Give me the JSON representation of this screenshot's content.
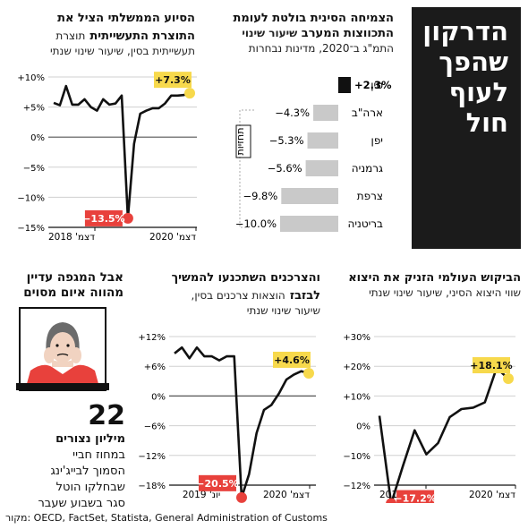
{
  "headline": [
    "הדרקון",
    "שהפך",
    "לעוף חול"
  ],
  "panels": {
    "gdp": {
      "title": [
        "הצמיחה הסינית בולטת לעומת",
        "התכווצות המערב"
      ],
      "subtitle": [
        "שיעור שינוי",
        "התמ\"ג ב־2020, מדינות נבחרות"
      ],
      "tag": "תחזיות"
    },
    "industry": {
      "title": [
        "הסיוע הממשלתי הציל את",
        "התוצרת התעשייתית"
      ],
      "subtitle": [
        "תוצרת",
        "תעשייתית בסין, שיעור שינוי שנתי"
      ]
    },
    "exports": {
      "title": [
        "הביקוש העולמי הזניק את היצוא"
      ],
      "subtitle": [
        "שווי היצוא הסיני, שיעור שינוי שנתי"
      ]
    },
    "retail": {
      "title": [
        "והצרכנים השתכנעו להמשיך",
        "לבזבז"
      ],
      "subtitle": [
        "הוצאות צרכנים בסין,",
        "שיעור שינוי שנתי"
      ]
    },
    "tourism": {
      "title": [
        "אבל המגפה עדיין",
        "מהווה איום מסוים"
      ],
      "number": "22",
      "number_label": "מיליון נצורים",
      "desc": [
        "במחוז חביי",
        "הסמוך לבייג'ינג",
        "שבחלקו הוטל",
        "סגר בשבוע שעבר"
      ]
    }
  },
  "source": "מקור: OECD, FactSet, Statista, General Administration of Customs",
  "colors": {
    "accent_yellow": "#f7d94c",
    "accent_red": "#e8413c",
    "bar_gray": "#c9c9c9",
    "china_black": "#111111"
  },
  "chart_data": [
    {
      "type": "bar",
      "orientation": "horizontal",
      "categories": [
        "סין",
        "ארה\"ב",
        "יפן",
        "גרמניה",
        "צרפת",
        "בריטניה"
      ],
      "values": [
        2.3,
        -4.3,
        -5.3,
        -5.6,
        -9.8,
        -10.0
      ],
      "value_labels": [
        "+2.3%",
        "−4.3%",
        "−5.3%",
        "−5.6%",
        "−9.8%",
        "−10.0%"
      ]
    },
    {
      "type": "line",
      "x_labels": [
        "דצמ' 2018",
        "דצמ' 2020"
      ],
      "y_ticks": [
        "+10%",
        "+5%",
        "0%",
        "−5%",
        "−10%",
        "−15%"
      ],
      "ylim": [
        -15,
        10
      ],
      "values": [
        5.7,
        5.3,
        8.5,
        5.4,
        5.4,
        6.3,
        5.0,
        4.4,
        6.3,
        5.4,
        5.6,
        6.9,
        -13.5,
        -1.1,
        3.9,
        4.4,
        4.8,
        4.8,
        5.6,
        6.9,
        6.9,
        7.0,
        7.3
      ],
      "annotations": [
        {
          "label": "+7.3%",
          "value": 7.3
        },
        {
          "label": "−13.5%",
          "value": -13.5
        }
      ]
    },
    {
      "type": "line",
      "x_labels": [
        "דצמ' 2019",
        "דצמ' 2020"
      ],
      "y_ticks": [
        "+30%",
        "+20%",
        "+10%",
        "0%",
        "−10%",
        "−12%"
      ],
      "ylim": [
        -12,
        30
      ],
      "values": [
        7.6,
        -17.2,
        -6.6,
        3.5,
        -3.3,
        -0.1,
        7.2,
        9.5,
        9.9,
        11.4,
        21.1,
        18.1
      ],
      "annotations": [
        {
          "label": "+18.1%",
          "value": 18.1
        },
        {
          "label": "−17.2%",
          "value": -17.2
        }
      ]
    },
    {
      "type": "line",
      "x_labels": [
        "יונ' 2019",
        "דצמ' 2020"
      ],
      "y_ticks": [
        "+12%",
        "+6%",
        "0%",
        "−6%",
        "−12%",
        "−18%"
      ],
      "ylim": [
        -18,
        12
      ],
      "values": [
        8.6,
        9.8,
        7.6,
        9.8,
        8.0,
        8.0,
        7.2,
        8.0,
        8.0,
        -20.5,
        -15.8,
        -7.5,
        -2.8,
        -1.8,
        0.5,
        3.3,
        4.3,
        5.0,
        4.6
      ],
      "annotations": [
        {
          "label": "+4.6%",
          "value": 4.6
        },
        {
          "label": "−20.5%",
          "value": -20.5
        }
      ]
    }
  ]
}
